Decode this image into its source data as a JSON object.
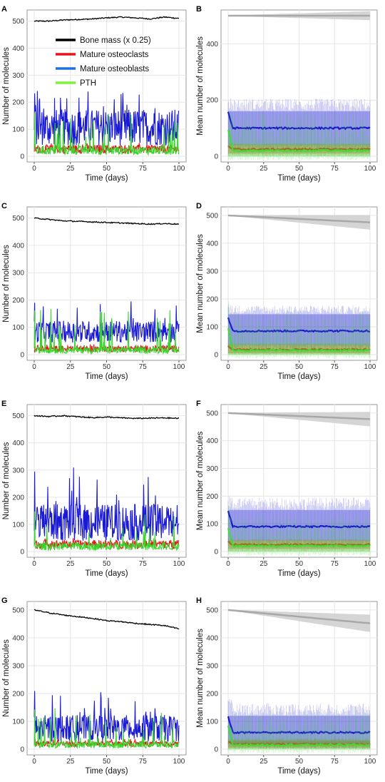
{
  "figure": {
    "legend": {
      "entries": [
        {
          "label": "Bone mass (x 0.25)",
          "color": "#000000"
        },
        {
          "label": "Mature osteoclasts",
          "color": "#e8141c"
        },
        {
          "label": "Mature osteoblasts",
          "color": "#1f6fe0"
        },
        {
          "label": "PTH",
          "color": "#7ef23a"
        }
      ]
    }
  },
  "chart_data": [
    {
      "panel": "A",
      "type": "line",
      "xlabel": "Time (days)",
      "ylabel": "Number of molecules",
      "xlim": [
        0,
        100
      ],
      "ylim": [
        0,
        520
      ],
      "xticks": [
        0,
        25,
        50,
        75,
        100
      ],
      "yticks": [
        0,
        100,
        200,
        300,
        400,
        500
      ],
      "grid": true,
      "legend_position": "top-left",
      "series": [
        {
          "name": "Bone mass (x 0.25)",
          "color": "#000000",
          "x": [
            0,
            10,
            20,
            30,
            40,
            50,
            60,
            70,
            80,
            90,
            100
          ],
          "y": [
            500,
            500,
            504,
            506,
            508,
            512,
            515,
            512,
            508,
            515,
            510
          ]
        },
        {
          "name": "Mature osteoblasts",
          "color": "#1a1ad6",
          "mean": 100,
          "range": [
            15,
            245
          ],
          "x_start": 0,
          "x_end": 100
        },
        {
          "name": "Mature osteoclasts",
          "color": "#e8141c",
          "mean": 25,
          "range": [
            5,
            50
          ],
          "x_start": 0,
          "x_end": 100
        },
        {
          "name": "PTH",
          "color": "#38d62a",
          "mean": 20,
          "range": [
            0,
            170
          ],
          "x_start": 0,
          "x_end": 100
        }
      ]
    },
    {
      "panel": "B",
      "type": "line",
      "xlabel": "Time (days)",
      "ylabel": "Mean number of molecules",
      "xlim": [
        0,
        100
      ],
      "ylim": [
        0,
        500
      ],
      "xticks": [
        0,
        25,
        50,
        75,
        100
      ],
      "yticks": [
        0,
        200,
        400
      ],
      "grid": true,
      "series": [
        {
          "name": "Bone mass (x 0.25)",
          "color": "#aaaaaa",
          "mean_start": 500,
          "mean_end": 500,
          "band_end": 15
        },
        {
          "name": "Mature osteoblasts",
          "color": "#1515d0",
          "mean": 100,
          "band": [
            40,
            160
          ],
          "range": [
            20,
            210
          ]
        },
        {
          "name": "Mature osteoclasts",
          "color": "#e02020",
          "mean": 25,
          "band": [
            10,
            40
          ],
          "range": [
            0,
            45
          ]
        },
        {
          "name": "PTH",
          "color": "#3fdc32",
          "mean": 20,
          "band": [
            0,
            45
          ],
          "range": [
            -15,
            170
          ]
        }
      ]
    },
    {
      "panel": "C",
      "type": "line",
      "xlabel": "Time (days)",
      "ylabel": "Number of molecules",
      "xlim": [
        0,
        100
      ],
      "ylim": [
        0,
        520
      ],
      "xticks": [
        0,
        25,
        50,
        75,
        100
      ],
      "yticks": [
        0,
        100,
        200,
        300,
        400,
        500
      ],
      "grid": true,
      "series": [
        {
          "name": "Bone mass (x 0.25)",
          "color": "#000000",
          "x": [
            0,
            10,
            20,
            30,
            40,
            50,
            60,
            70,
            80,
            90,
            100
          ],
          "y": [
            500,
            495,
            490,
            488,
            486,
            484,
            482,
            480,
            478,
            480,
            478
          ]
        },
        {
          "name": "Mature osteoblasts",
          "color": "#1a1ad6",
          "mean": 80,
          "range": [
            30,
            200
          ],
          "x_start": 0,
          "x_end": 100
        },
        {
          "name": "Mature osteoclasts",
          "color": "#e8141c",
          "mean": 20,
          "range": [
            5,
            40
          ],
          "x_start": 0,
          "x_end": 100
        },
        {
          "name": "PTH",
          "color": "#38d62a",
          "mean": 15,
          "range": [
            0,
            170
          ],
          "x_start": 0,
          "x_end": 100
        }
      ]
    },
    {
      "panel": "D",
      "type": "line",
      "xlabel": "Time (days)",
      "ylabel": "Mean number of molecules",
      "xlim": [
        0,
        100
      ],
      "ylim": [
        0,
        510
      ],
      "xticks": [
        0,
        25,
        50,
        75,
        100
      ],
      "yticks": [
        0,
        100,
        200,
        300,
        400,
        500
      ],
      "grid": true,
      "series": [
        {
          "name": "Bone mass (x 0.25)",
          "color": "#aaaaaa",
          "mean_start": 500,
          "mean_end": 475,
          "band_end": 25
        },
        {
          "name": "Mature osteoblasts",
          "color": "#1515d0",
          "mean": 85,
          "band": [
            35,
            145
          ],
          "range": [
            20,
            180
          ]
        },
        {
          "name": "Mature osteoclasts",
          "color": "#e02020",
          "mean": 18,
          "band": [
            5,
            35
          ],
          "range": [
            0,
            40
          ]
        },
        {
          "name": "PTH",
          "color": "#3fdc32",
          "mean": 15,
          "band": [
            0,
            40
          ],
          "range": [
            -15,
            170
          ]
        }
      ]
    },
    {
      "panel": "E",
      "type": "line",
      "xlabel": "Time (days)",
      "ylabel": "Number of molecules",
      "xlim": [
        0,
        100
      ],
      "ylim": [
        0,
        520
      ],
      "xticks": [
        0,
        25,
        50,
        75,
        100
      ],
      "yticks": [
        0,
        100,
        200,
        300,
        400,
        500
      ],
      "grid": true,
      "series": [
        {
          "name": "Bone mass (x 0.25)",
          "color": "#000000",
          "x": [
            0,
            10,
            20,
            30,
            40,
            50,
            60,
            70,
            80,
            90,
            100
          ],
          "y": [
            500,
            497,
            500,
            496,
            493,
            495,
            492,
            490,
            491,
            492,
            490
          ]
        },
        {
          "name": "Mature osteoblasts",
          "color": "#1a1ad6",
          "mean": 100,
          "range": [
            15,
            310
          ],
          "x_start": 0,
          "x_end": 100
        },
        {
          "name": "Mature osteoclasts",
          "color": "#e8141c",
          "mean": 25,
          "range": [
            5,
            50
          ],
          "x_start": 0,
          "x_end": 100
        },
        {
          "name": "PTH",
          "color": "#38d62a",
          "mean": 18,
          "range": [
            0,
            155
          ],
          "x_start": 0,
          "x_end": 100
        }
      ]
    },
    {
      "panel": "F",
      "type": "line",
      "xlabel": "Time (days)",
      "ylabel": "Mean number of molecules",
      "xlim": [
        0,
        100
      ],
      "ylim": [
        0,
        510
      ],
      "xticks": [
        0,
        25,
        50,
        75,
        100
      ],
      "yticks": [
        0,
        100,
        200,
        300,
        400,
        500
      ],
      "grid": true,
      "series": [
        {
          "name": "Bone mass (x 0.25)",
          "color": "#aaaaaa",
          "mean_start": 500,
          "mean_end": 478,
          "band_end": 25
        },
        {
          "name": "Mature osteoblasts",
          "color": "#1515d0",
          "mean": 90,
          "band": [
            40,
            150
          ],
          "range": [
            20,
            200
          ]
        },
        {
          "name": "Mature osteoclasts",
          "color": "#e02020",
          "mean": 25,
          "band": [
            10,
            40
          ],
          "range": [
            0,
            45
          ]
        },
        {
          "name": "PTH",
          "color": "#3fdc32",
          "mean": 20,
          "band": [
            0,
            40
          ],
          "range": [
            -15,
            150
          ]
        }
      ]
    },
    {
      "panel": "G",
      "type": "line",
      "xlabel": "Time (days)",
      "ylabel": "Number of molecules",
      "xlim": [
        0,
        100
      ],
      "ylim": [
        0,
        510
      ],
      "xticks": [
        0,
        25,
        50,
        75,
        100
      ],
      "yticks": [
        0,
        100,
        200,
        300,
        400,
        500
      ],
      "grid": true,
      "series": [
        {
          "name": "Bone mass (x 0.25)",
          "color": "#000000",
          "x": [
            0,
            10,
            20,
            30,
            40,
            50,
            60,
            70,
            80,
            90,
            100
          ],
          "y": [
            500,
            490,
            482,
            476,
            470,
            462,
            458,
            452,
            448,
            444,
            432
          ]
        },
        {
          "name": "Mature osteoblasts",
          "color": "#1a1ad6",
          "mean": 70,
          "range": [
            10,
            220
          ],
          "x_start": 0,
          "x_end": 100
        },
        {
          "name": "Mature osteoclasts",
          "color": "#e8141c",
          "mean": 18,
          "range": [
            5,
            40
          ],
          "x_start": 0,
          "x_end": 100
        },
        {
          "name": "PTH",
          "color": "#38d62a",
          "mean": 15,
          "range": [
            0,
            150
          ],
          "x_start": 0,
          "x_end": 100
        }
      ]
    },
    {
      "panel": "H",
      "type": "line",
      "xlabel": "Time (days)",
      "ylabel": "Mean number of molecules",
      "xlim": [
        0,
        100
      ],
      "ylim": [
        0,
        510
      ],
      "xticks": [
        0,
        25,
        50,
        75,
        100
      ],
      "yticks": [
        0,
        100,
        200,
        300,
        400,
        500
      ],
      "grid": true,
      "series": [
        {
          "name": "Bone mass (x 0.25)",
          "color": "#aaaaaa",
          "mean_start": 500,
          "mean_end": 452,
          "band_end": 30
        },
        {
          "name": "Mature osteoblasts",
          "color": "#1515d0",
          "mean": 60,
          "band": [
            20,
            120
          ],
          "range": [
            0,
            170
          ]
        },
        {
          "name": "Mature osteoclasts",
          "color": "#e02020",
          "mean": 18,
          "band": [
            5,
            30
          ],
          "range": [
            0,
            40
          ]
        },
        {
          "name": "PTH",
          "color": "#3fdc32",
          "mean": 15,
          "band": [
            0,
            35
          ],
          "range": [
            -15,
            150
          ]
        }
      ]
    }
  ]
}
